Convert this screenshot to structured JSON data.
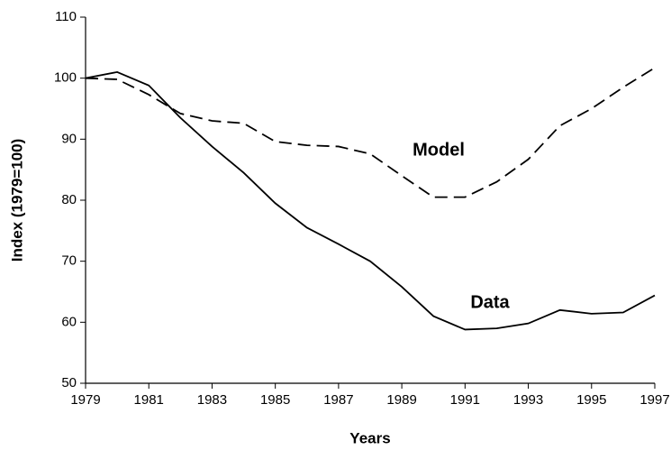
{
  "chart_data": {
    "type": "line",
    "x_label": "Years",
    "y_label": "Index (1979=100)",
    "x": [
      1979,
      1980,
      1981,
      1982,
      1983,
      1984,
      1985,
      1986,
      1987,
      1988,
      1989,
      1990,
      1991,
      1992,
      1993,
      1994,
      1995,
      1996,
      1997
    ],
    "series": [
      {
        "name": "Data",
        "color": "#000000",
        "line_style": "solid",
        "values": [
          100,
          101,
          98.8,
          93.5,
          88.8,
          84.5,
          79.5,
          75.5,
          72.8,
          70,
          65.8,
          61,
          58.8,
          59,
          59.8,
          62,
          61.4,
          61.6,
          64.4
        ]
      },
      {
        "name": "Model",
        "color": "#000000",
        "line_style": "dashed",
        "values": [
          100,
          99.8,
          97.3,
          94.2,
          93,
          92.6,
          89.6,
          89,
          88.8,
          87.6,
          84,
          80.5,
          80.5,
          83,
          86.7,
          92.2,
          95,
          98.5,
          101.7
        ]
      }
    ],
    "xlim": [
      1979,
      1997
    ],
    "xticks": [
      1979,
      1981,
      1983,
      1985,
      1987,
      1989,
      1991,
      1993,
      1995,
      1997
    ],
    "ylim": [
      50,
      110
    ],
    "yticks": [
      50,
      60,
      70,
      80,
      90,
      100,
      110
    ],
    "grid": false
  }
}
